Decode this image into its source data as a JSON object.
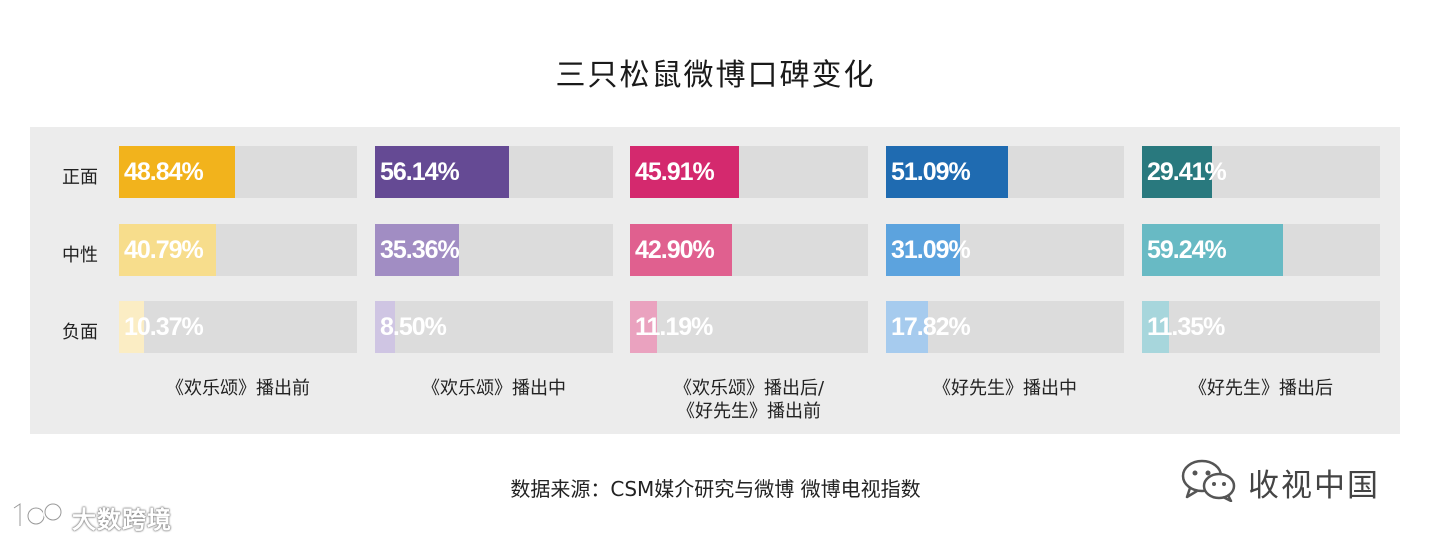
{
  "chart_data": {
    "type": "bar",
    "title": "三只松鼠微博口碑变化",
    "categories": [
      "正面",
      "中性",
      "负面"
    ],
    "value_unit": "%",
    "xlim": [
      0,
      100
    ],
    "groups": [
      {
        "label": "《欢乐颂》播出前",
        "values": [
          48.84,
          40.79,
          10.37
        ],
        "labels": [
          "48.84%",
          "40.79%",
          "10.37%"
        ],
        "colors": [
          "#f2b31c",
          "#f7dd8c",
          "#fbedc4"
        ]
      },
      {
        "label": "《欢乐颂》播出中",
        "values": [
          56.14,
          35.36,
          8.5
        ],
        "labels": [
          "56.14%",
          "35.36%",
          "8.50%"
        ],
        "colors": [
          "#654a94",
          "#a18dc3",
          "#cfc5e3"
        ]
      },
      {
        "label": "《欢乐颂》播出后/\n《好先生》播出前",
        "values": [
          45.91,
          42.9,
          11.19
        ],
        "labels": [
          "45.91%",
          "42.90%",
          "11.19%"
        ],
        "colors": [
          "#d4296e",
          "#e0608f",
          "#eaa2bf"
        ]
      },
      {
        "label": "《好先生》播出中",
        "values": [
          51.09,
          31.09,
          17.82
        ],
        "labels": [
          "51.09%",
          "31.09%",
          "17.82%"
        ],
        "colors": [
          "#1f6bb1",
          "#5ca3de",
          "#a6cbee"
        ]
      },
      {
        "label": "《好先生》播出后",
        "values": [
          29.41,
          59.24,
          11.35
        ],
        "labels": [
          "29.41%",
          "59.24%",
          "11.35%"
        ],
        "colors": [
          "#29797e",
          "#68bac4",
          "#a7d6dc"
        ]
      }
    ],
    "source": "数据来源：CSM媒介研究与微博 微博电视指数",
    "grid": false,
    "legend": "none"
  },
  "watermarks": {
    "wechat_text": "收视中国",
    "logo_text": "大数跨境",
    "wechat_icon": "wechat-icon",
    "logo_icon": "1data-logo-icon"
  }
}
